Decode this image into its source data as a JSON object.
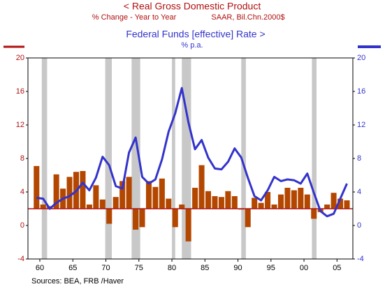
{
  "chart_data": {
    "type": "bar-line",
    "source": "Sources:  BEA, FRB /Haver",
    "x": [
      1959.5,
      1960.5,
      1961.5,
      1962.5,
      1963.5,
      1964.5,
      1965.5,
      1966.5,
      1967.5,
      1968.5,
      1969.5,
      1970.5,
      1971.5,
      1972.5,
      1973.5,
      1974.5,
      1975.5,
      1976.5,
      1977.5,
      1978.5,
      1979.5,
      1980.5,
      1981.5,
      1982.5,
      1983.5,
      1984.5,
      1985.5,
      1986.5,
      1987.5,
      1988.5,
      1989.5,
      1990.5,
      1991.5,
      1992.5,
      1993.5,
      1994.5,
      1995.5,
      1996.5,
      1997.5,
      1998.5,
      1999.5,
      2000.5,
      2001.5,
      2002.5,
      2003.5,
      2004.5,
      2005.5,
      2006.5
    ],
    "series": [
      {
        "name": "<  Real Gross Domestic Product",
        "type": "bar",
        "axis": "y",
        "color": "#b34700",
        "label_color": "#b01010",
        "unit": "% Change - Year to Year",
        "note": "SAAR, Bil.Chn.2000$",
        "values": [
          7.1,
          2.5,
          2.3,
          6.1,
          4.4,
          5.8,
          6.4,
          6.5,
          2.5,
          4.8,
          3.1,
          0.2,
          3.4,
          5.3,
          5.8,
          -0.5,
          -0.2,
          5.3,
          4.6,
          5.6,
          3.2,
          -0.2,
          2.5,
          -1.9,
          4.5,
          7.2,
          4.1,
          3.5,
          3.4,
          4.1,
          3.5,
          1.9,
          -0.2,
          3.3,
          2.7,
          4.0,
          2.5,
          3.7,
          4.5,
          4.2,
          4.5,
          3.7,
          0.8,
          1.6,
          2.5,
          3.9,
          3.2,
          3.0
        ]
      },
      {
        "name": "Federal Funds [effective] Rate  >",
        "type": "line",
        "axis": "y2",
        "color": "#3333cc",
        "label_color": "#3333cc",
        "unit": "% p.a.",
        "values": [
          3.3,
          3.2,
          2.0,
          2.7,
          3.2,
          3.5,
          4.1,
          5.1,
          4.2,
          5.7,
          8.2,
          7.2,
          4.7,
          4.4,
          8.7,
          10.5,
          5.8,
          5.0,
          5.5,
          7.9,
          11.2,
          13.4,
          16.4,
          12.3,
          9.1,
          10.2,
          8.1,
          6.8,
          6.7,
          7.6,
          9.2,
          8.1,
          5.7,
          3.5,
          3.0,
          4.2,
          5.8,
          5.3,
          5.5,
          5.4,
          5.0,
          6.2,
          3.9,
          1.7,
          1.1,
          1.4,
          3.2,
          5.0
        ]
      }
    ],
    "reference_line": 2,
    "recessions": [
      [
        1960.3,
        1961.1
      ],
      [
        1969.9,
        1970.9
      ],
      [
        1973.9,
        1975.2
      ],
      [
        1980.0,
        1980.5
      ],
      [
        1981.5,
        1982.9
      ],
      [
        1990.5,
        1991.2
      ],
      [
        2001.2,
        2001.9
      ]
    ],
    "xlim": [
      1958.2,
      2007.4
    ],
    "xticks": [
      {
        "value": 1960,
        "label": "60"
      },
      {
        "value": 1965,
        "label": "65"
      },
      {
        "value": 1970,
        "label": "70"
      },
      {
        "value": 1975,
        "label": "75"
      },
      {
        "value": 1980,
        "label": "80"
      },
      {
        "value": 1985,
        "label": "85"
      },
      {
        "value": 1990,
        "label": "90"
      },
      {
        "value": 1995,
        "label": "95"
      },
      {
        "value": 2000,
        "label": "00"
      },
      {
        "value": 2005,
        "label": "05"
      }
    ],
    "ylim": [
      -4,
      20
    ],
    "yticks": [
      -4,
      0,
      4,
      8,
      12,
      16,
      20
    ],
    "y2lim": [
      -4,
      20
    ],
    "y2ticks": [
      -4,
      0,
      4,
      8,
      12,
      16,
      20
    ]
  }
}
